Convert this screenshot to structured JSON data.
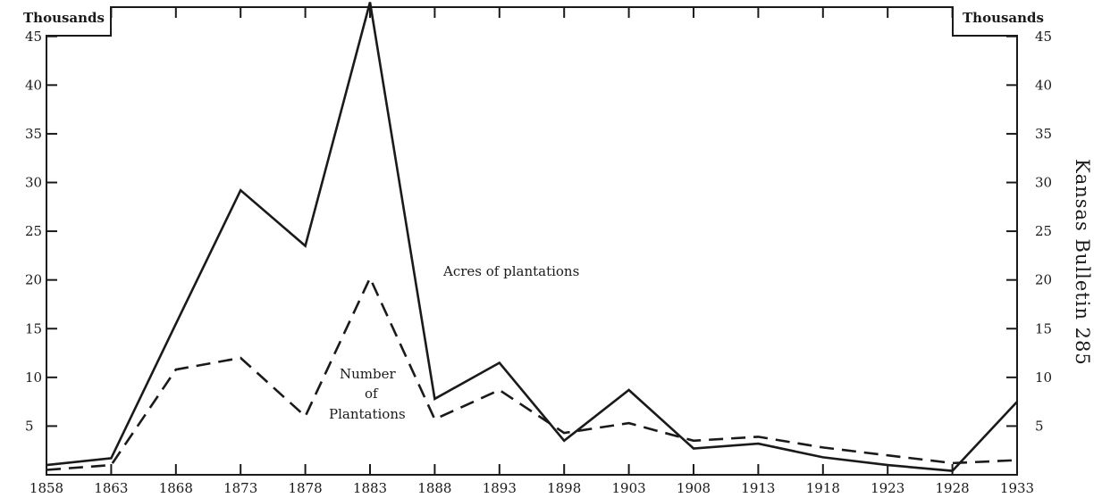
{
  "chart_data": {
    "type": "line",
    "title": "",
    "left_axis_label": "Thousands",
    "right_axis_label": "Thousands",
    "x": [
      1858,
      1863,
      1868,
      1873,
      1878,
      1883,
      1888,
      1893,
      1898,
      1903,
      1908,
      1913,
      1918,
      1923,
      1928,
      1933
    ],
    "x_tick_labels": [
      "1858",
      "1863",
      "1868",
      "1873",
      "1878",
      "1883",
      "1888",
      "1893",
      "1898",
      "1903",
      "1908",
      "1913",
      "1918",
      "1923",
      "1928",
      "1933"
    ],
    "xlim": [
      1858,
      1933
    ],
    "ylim": [
      0,
      48
    ],
    "y_ticks": [
      5,
      10,
      15,
      20,
      25,
      30,
      35,
      40,
      45
    ],
    "y_tick_labels": [
      "5",
      "10",
      "15",
      "20",
      "25",
      "30",
      "35",
      "40",
      "45"
    ],
    "grid": false,
    "series": [
      {
        "name": "Acres of plantations",
        "style": "solid",
        "color": "#1a1a1a",
        "values": [
          1.0,
          1.7,
          15.5,
          29.2,
          23.5,
          48.5,
          7.8,
          11.5,
          3.5,
          8.7,
          2.7,
          3.2,
          1.8,
          1.0,
          0.4,
          7.5
        ]
      },
      {
        "name": "Number of Plantations",
        "style": "dashed",
        "color": "#1a1a1a",
        "values": [
          0.5,
          1.0,
          10.8,
          12.0,
          6.0,
          20.2,
          5.7,
          8.7,
          4.3,
          5.3,
          3.5,
          3.9,
          2.8,
          2.0,
          1.2,
          1.5
        ]
      }
    ],
    "annotations": {
      "acres_label": "Acres of plantations",
      "number_label_line1": "Number",
      "number_label_line2": "of",
      "number_label_line3": "Plantations"
    }
  },
  "margin_text": {
    "running_head": "Kansas Bulletin 285"
  }
}
